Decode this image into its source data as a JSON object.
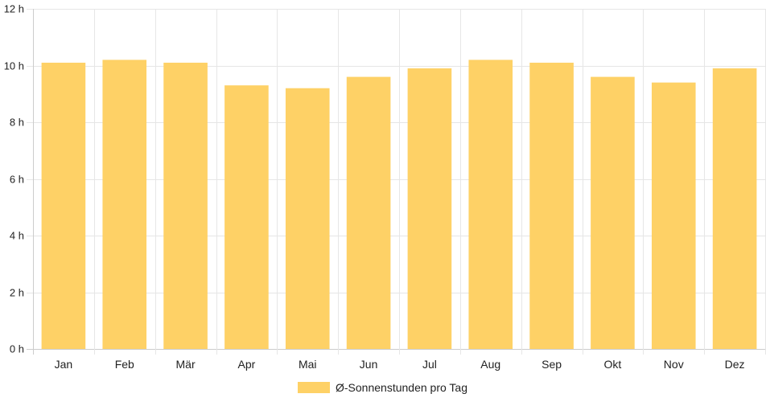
{
  "chart_data": {
    "type": "bar",
    "categories": [
      "Jan",
      "Feb",
      "Mär",
      "Apr",
      "Mai",
      "Jun",
      "Jul",
      "Aug",
      "Sep",
      "Okt",
      "Nov",
      "Dez"
    ],
    "series": [
      {
        "name": "Ø-Sonnenstunden pro Tag",
        "values": [
          10.1,
          10.2,
          10.1,
          9.3,
          9.2,
          9.6,
          9.9,
          10.2,
          10.1,
          9.6,
          9.4,
          9.9
        ],
        "color": "#fed166"
      }
    ],
    "ylim": [
      0,
      12
    ],
    "y_ticks": [
      0,
      2,
      4,
      6,
      8,
      10,
      12
    ],
    "y_tick_suffix": " h",
    "grid": true,
    "legend_position": "bottom",
    "title": "",
    "xlabel": "",
    "ylabel": ""
  },
  "colors": {
    "grid": "#e6e6e6",
    "axis": "#cccccc",
    "text": "#222222",
    "bar": "#fed166"
  }
}
